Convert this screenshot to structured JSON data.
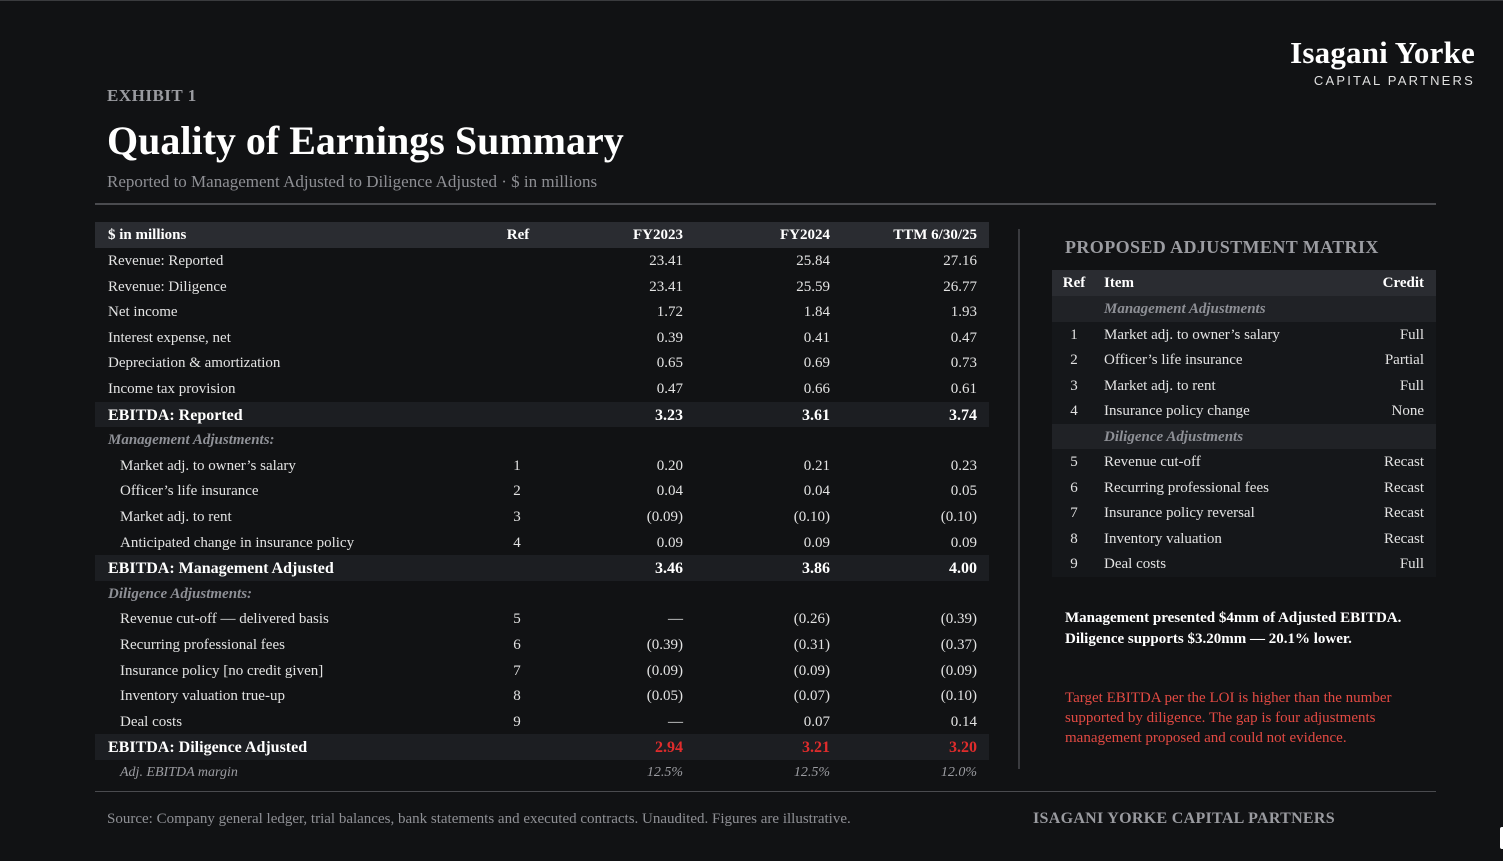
{
  "brand": {
    "name": "Isagani Yorke",
    "sub": "CAPITAL PARTNERS"
  },
  "header": {
    "exhibit": "EXHIBIT 1",
    "title": "Quality of Earnings Summary",
    "subtitle": "Reported to Management Adjusted to Diligence Adjusted  ·  $ in millions"
  },
  "table": {
    "columns": [
      "$ in millions",
      "Ref",
      "FY2023",
      "FY2024",
      "TTM 6/30/25"
    ],
    "rows": [
      {
        "label": "Revenue: Reported",
        "ref": "",
        "v": [
          "23.41",
          "25.84",
          "27.16"
        ]
      },
      {
        "label": "Revenue: Diligence",
        "ref": "",
        "v": [
          "23.41",
          "25.59",
          "26.77"
        ]
      },
      {
        "label": "Net income",
        "ref": "",
        "v": [
          "1.72",
          "1.84",
          "1.93"
        ]
      },
      {
        "label": "Interest expense, net",
        "ref": "",
        "v": [
          "0.39",
          "0.41",
          "0.47"
        ]
      },
      {
        "label": "Depreciation & amortization",
        "ref": "",
        "v": [
          "0.65",
          "0.69",
          "0.73"
        ]
      },
      {
        "label": "Income tax provision",
        "ref": "",
        "v": [
          "0.47",
          "0.66",
          "0.61"
        ]
      },
      {
        "label": "EBITDA: Reported",
        "ref": "",
        "v": [
          "3.23",
          "3.61",
          "3.74"
        ]
      },
      {
        "label": "Management Adjustments:",
        "ref": "",
        "v": [
          "",
          "",
          ""
        ]
      },
      {
        "label": "Market adj. to owner’s salary",
        "ref": "1",
        "v": [
          "0.20",
          "0.21",
          "0.23"
        ]
      },
      {
        "label": "Officer’s life insurance",
        "ref": "2",
        "v": [
          "0.04",
          "0.04",
          "0.05"
        ]
      },
      {
        "label": "Market adj. to rent",
        "ref": "3",
        "v": [
          "(0.09)",
          "(0.10)",
          "(0.10)"
        ]
      },
      {
        "label": "Anticipated change in insurance policy",
        "ref": "4",
        "v": [
          "0.09",
          "0.09",
          "0.09"
        ]
      },
      {
        "label": "EBITDA: Management Adjusted",
        "ref": "",
        "v": [
          "3.46",
          "3.86",
          "4.00"
        ]
      },
      {
        "label": "Diligence Adjustments:",
        "ref": "",
        "v": [
          "",
          "",
          ""
        ]
      },
      {
        "label": "Revenue cut-off — delivered basis",
        "ref": "5",
        "v": [
          "—",
          "(0.26)",
          "(0.39)"
        ]
      },
      {
        "label": "Recurring professional fees",
        "ref": "6",
        "v": [
          "(0.39)",
          "(0.31)",
          "(0.37)"
        ]
      },
      {
        "label": "Insurance policy [no credit given]",
        "ref": "7",
        "v": [
          "(0.09)",
          "(0.09)",
          "(0.09)"
        ]
      },
      {
        "label": "Inventory valuation true-up",
        "ref": "8",
        "v": [
          "(0.05)",
          "(0.07)",
          "(0.10)"
        ]
      },
      {
        "label": "Deal costs",
        "ref": "9",
        "v": [
          "—",
          "0.07",
          "0.14"
        ]
      },
      {
        "label": "EBITDA: Diligence Adjusted",
        "ref": "",
        "v": [
          "2.94",
          "3.21",
          "3.20"
        ]
      },
      {
        "label": "Adj. EBITDA margin",
        "ref": "",
        "v": [
          "12.5%",
          "12.5%",
          "12.0%"
        ]
      }
    ]
  },
  "matrix": {
    "title": "PROPOSED ADJUSTMENT MATRIX",
    "columns": [
      "Ref",
      "Item",
      "Credit"
    ],
    "groups": [
      {
        "label": "Management Adjustments",
        "items": [
          {
            "ref": "1",
            "item": "Market adj. to owner’s salary",
            "credit": "Full"
          },
          {
            "ref": "2",
            "item": "Officer’s life insurance",
            "credit": "Partial"
          },
          {
            "ref": "3",
            "item": "Market adj. to rent",
            "credit": "Full"
          },
          {
            "ref": "4",
            "item": "Insurance policy change",
            "credit": "None"
          }
        ]
      },
      {
        "label": "Diligence Adjustments",
        "items": [
          {
            "ref": "5",
            "item": "Revenue cut-off",
            "credit": "Recast"
          },
          {
            "ref": "6",
            "item": "Recurring professional fees",
            "credit": "Recast"
          },
          {
            "ref": "7",
            "item": "Insurance policy reversal",
            "credit": "Recast"
          },
          {
            "ref": "8",
            "item": "Inventory valuation",
            "credit": "Recast"
          },
          {
            "ref": "9",
            "item": "Deal costs",
            "credit": "Full"
          }
        ]
      }
    ]
  },
  "callout": "Management presented $4mm of Adjusted EBITDA. Diligence supports $3.20mm — 20.1% lower.",
  "note": "Target EBITDA per the LOI is higher than the number supported by diligence. The gap is four adjustments management proposed and could not evidence.",
  "footer": {
    "source": "Source: Company general ledger, trial balances, bank statements and executed contracts. Unaudited. Figures are illustrative.",
    "brand": "ISAGANI YORKE CAPITAL PARTNERS"
  },
  "colors": {
    "background": "#111214",
    "header_band": "#2a2c31",
    "negative": "#e02c2c",
    "note": "#e24a43"
  }
}
